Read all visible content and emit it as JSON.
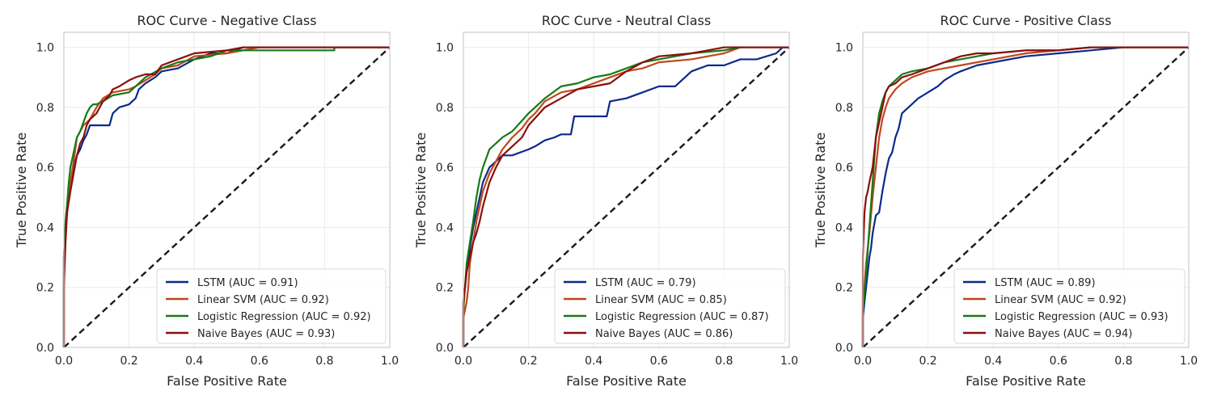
{
  "colors": {
    "LSTM": "#0a2a8a",
    "Linear SVM": "#c0481a",
    "Logistic Regression": "#167a16",
    "Naive Bayes": "#8b0e0e",
    "chance": "#1a1a1a",
    "grid": "#ebebeb",
    "frame": "#cccccc"
  },
  "chart_data": [
    {
      "type": "line",
      "title": "ROC Curve - Negative Class",
      "xlabel": "False Positive Rate",
      "ylabel": "True Positive Rate",
      "xlim": [
        0,
        1
      ],
      "ylim": [
        0,
        1.05
      ],
      "xticks": [
        "0.0",
        "0.2",
        "0.4",
        "0.6",
        "0.8",
        "1.0"
      ],
      "yticks": [
        "0.0",
        "0.2",
        "0.4",
        "0.6",
        "0.8",
        "1.0"
      ],
      "grid": true,
      "legend_position": "lower-right",
      "chance_line": true,
      "series": [
        {
          "name": "LSTM (AUC = 0.91)",
          "model": "LSTM",
          "x": [
            0,
            0,
            0.005,
            0.01,
            0.015,
            0.02,
            0.025,
            0.03,
            0.035,
            0.04,
            0.05,
            0.06,
            0.07,
            0.08,
            0.1,
            0.14,
            0.15,
            0.17,
            0.2,
            0.22,
            0.23,
            0.25,
            0.28,
            0.3,
            0.35,
            0.4,
            0.45,
            0.5,
            0.55,
            1.0
          ],
          "y": [
            0,
            0.3,
            0.4,
            0.45,
            0.5,
            0.53,
            0.56,
            0.6,
            0.62,
            0.64,
            0.66,
            0.69,
            0.71,
            0.74,
            0.74,
            0.74,
            0.78,
            0.8,
            0.81,
            0.83,
            0.86,
            0.88,
            0.9,
            0.92,
            0.93,
            0.96,
            0.98,
            0.98,
            1.0,
            1.0
          ]
        },
        {
          "name": "Linear SVM (AUC = 0.92)",
          "model": "Linear SVM",
          "x": [
            0,
            0,
            0.005,
            0.01,
            0.02,
            0.03,
            0.04,
            0.05,
            0.06,
            0.08,
            0.1,
            0.12,
            0.15,
            0.2,
            0.22,
            0.25,
            0.28,
            0.3,
            0.35,
            0.4,
            0.5,
            0.6,
            1.0
          ],
          "y": [
            0,
            0.25,
            0.4,
            0.47,
            0.55,
            0.62,
            0.7,
            0.72,
            0.74,
            0.76,
            0.8,
            0.83,
            0.85,
            0.86,
            0.87,
            0.89,
            0.91,
            0.93,
            0.94,
            0.97,
            0.98,
            1.0,
            1.0
          ]
        },
        {
          "name": "Logistic Regression (AUC = 0.92)",
          "model": "Logistic Regression",
          "x": [
            0,
            0,
            0.005,
            0.01,
            0.015,
            0.02,
            0.03,
            0.04,
            0.05,
            0.06,
            0.07,
            0.08,
            0.09,
            0.1,
            0.12,
            0.15,
            0.2,
            0.23,
            0.25,
            0.3,
            0.35,
            0.4,
            0.45,
            0.5,
            0.83,
            0.83,
            1.0
          ],
          "y": [
            0,
            0.3,
            0.42,
            0.48,
            0.55,
            0.6,
            0.65,
            0.7,
            0.72,
            0.75,
            0.78,
            0.8,
            0.81,
            0.81,
            0.82,
            0.84,
            0.85,
            0.88,
            0.9,
            0.93,
            0.95,
            0.96,
            0.97,
            0.99,
            0.99,
            1.0,
            1.0
          ]
        },
        {
          "name": "Naive Bayes (AUC = 0.93)",
          "model": "Naive Bayes",
          "x": [
            0,
            0,
            0.005,
            0.01,
            0.02,
            0.03,
            0.04,
            0.05,
            0.06,
            0.07,
            0.08,
            0.1,
            0.12,
            0.14,
            0.15,
            0.17,
            0.2,
            0.22,
            0.25,
            0.28,
            0.3,
            0.35,
            0.4,
            0.5,
            0.55,
            1.0
          ],
          "y": [
            0,
            0.2,
            0.35,
            0.45,
            0.52,
            0.58,
            0.64,
            0.68,
            0.7,
            0.74,
            0.76,
            0.78,
            0.82,
            0.84,
            0.86,
            0.87,
            0.89,
            0.9,
            0.91,
            0.91,
            0.94,
            0.96,
            0.98,
            0.99,
            1.0,
            1.0
          ]
        }
      ]
    },
    {
      "type": "line",
      "title": "ROC Curve - Neutral Class",
      "xlabel": "False Positive Rate",
      "ylabel": "True Positive Rate",
      "xlim": [
        0,
        1
      ],
      "ylim": [
        0,
        1.05
      ],
      "xticks": [
        "0.0",
        "0.2",
        "0.4",
        "0.6",
        "0.8",
        "1.0"
      ],
      "yticks": [
        "0.0",
        "0.2",
        "0.4",
        "0.6",
        "0.8",
        "1.0"
      ],
      "grid": true,
      "legend_position": "lower-right",
      "chance_line": true,
      "series": [
        {
          "name": "LSTM (AUC = 0.79)",
          "model": "LSTM",
          "x": [
            0,
            0,
            0.01,
            0.02,
            0.03,
            0.04,
            0.05,
            0.06,
            0.08,
            0.1,
            0.12,
            0.15,
            0.2,
            0.22,
            0.25,
            0.28,
            0.3,
            0.33,
            0.34,
            0.4,
            0.44,
            0.45,
            0.5,
            0.55,
            0.6,
            0.65,
            0.7,
            0.75,
            0.8,
            0.85,
            0.9,
            0.96,
            0.98,
            1.0
          ],
          "y": [
            0,
            0.15,
            0.25,
            0.33,
            0.4,
            0.45,
            0.5,
            0.55,
            0.6,
            0.62,
            0.64,
            0.64,
            0.66,
            0.67,
            0.69,
            0.7,
            0.71,
            0.71,
            0.77,
            0.77,
            0.77,
            0.82,
            0.83,
            0.85,
            0.87,
            0.87,
            0.92,
            0.94,
            0.94,
            0.96,
            0.96,
            0.98,
            1.0,
            1.0
          ]
        },
        {
          "name": "Linear SVM (AUC = 0.85)",
          "model": "Linear SVM",
          "x": [
            0,
            0,
            0.01,
            0.015,
            0.02,
            0.03,
            0.04,
            0.05,
            0.06,
            0.08,
            0.1,
            0.12,
            0.15,
            0.18,
            0.2,
            0.22,
            0.25,
            0.3,
            0.35,
            0.4,
            0.45,
            0.5,
            0.55,
            0.6,
            0.7,
            0.75,
            0.8,
            0.85,
            1.0
          ],
          "y": [
            0,
            0.1,
            0.15,
            0.2,
            0.28,
            0.35,
            0.42,
            0.47,
            0.52,
            0.58,
            0.62,
            0.66,
            0.7,
            0.73,
            0.76,
            0.78,
            0.82,
            0.85,
            0.86,
            0.88,
            0.9,
            0.92,
            0.93,
            0.95,
            0.96,
            0.97,
            0.98,
            1.0,
            1.0
          ]
        },
        {
          "name": "Logistic Regression (AUC = 0.87)",
          "model": "Logistic Regression",
          "x": [
            0,
            0,
            0.005,
            0.01,
            0.02,
            0.03,
            0.04,
            0.05,
            0.06,
            0.07,
            0.08,
            0.1,
            0.12,
            0.15,
            0.2,
            0.25,
            0.3,
            0.35,
            0.4,
            0.45,
            0.5,
            0.55,
            0.6,
            0.65,
            0.7,
            0.8,
            0.85,
            1.0
          ],
          "y": [
            0,
            0.12,
            0.2,
            0.28,
            0.35,
            0.42,
            0.5,
            0.56,
            0.6,
            0.63,
            0.66,
            0.68,
            0.7,
            0.72,
            0.78,
            0.83,
            0.87,
            0.88,
            0.9,
            0.91,
            0.93,
            0.95,
            0.96,
            0.97,
            0.98,
            0.99,
            1.0,
            1.0
          ]
        },
        {
          "name": "Naive Bayes (AUC = 0.86)",
          "model": "Naive Bayes",
          "x": [
            0,
            0,
            0.01,
            0.02,
            0.03,
            0.04,
            0.05,
            0.06,
            0.08,
            0.1,
            0.12,
            0.15,
            0.18,
            0.2,
            0.25,
            0.3,
            0.35,
            0.4,
            0.45,
            0.5,
            0.55,
            0.6,
            0.7,
            0.75,
            0.8,
            1.0
          ],
          "y": [
            0,
            0.15,
            0.25,
            0.3,
            0.35,
            0.38,
            0.42,
            0.47,
            0.55,
            0.6,
            0.64,
            0.67,
            0.7,
            0.74,
            0.8,
            0.83,
            0.86,
            0.87,
            0.88,
            0.92,
            0.95,
            0.97,
            0.98,
            0.99,
            1.0,
            1.0
          ]
        }
      ]
    },
    {
      "type": "line",
      "title": "ROC Curve - Positive Class",
      "xlabel": "False Positive Rate",
      "ylabel": "True Positive Rate",
      "xlim": [
        0,
        1
      ],
      "ylim": [
        0,
        1.05
      ],
      "xticks": [
        "0.0",
        "0.2",
        "0.4",
        "0.6",
        "0.8",
        "1.0"
      ],
      "yticks": [
        "0.0",
        "0.2",
        "0.4",
        "0.6",
        "0.8",
        "1.0"
      ],
      "grid": true,
      "legend_position": "lower-right",
      "chance_line": true,
      "series": [
        {
          "name": "LSTM (AUC = 0.89)",
          "model": "LSTM",
          "x": [
            0,
            0,
            0.01,
            0.02,
            0.025,
            0.03,
            0.04,
            0.05,
            0.06,
            0.07,
            0.08,
            0.09,
            0.1,
            0.11,
            0.12,
            0.13,
            0.15,
            0.17,
            0.2,
            0.23,
            0.25,
            0.28,
            0.3,
            0.35,
            0.4,
            0.5,
            0.6,
            0.7,
            0.8,
            0.9,
            1.0
          ],
          "y": [
            0,
            0.1,
            0.2,
            0.3,
            0.33,
            0.38,
            0.44,
            0.45,
            0.52,
            0.58,
            0.63,
            0.65,
            0.7,
            0.73,
            0.78,
            0.79,
            0.81,
            0.83,
            0.85,
            0.87,
            0.89,
            0.91,
            0.92,
            0.94,
            0.95,
            0.97,
            0.98,
            0.99,
            1.0,
            1.0,
            1.0
          ]
        },
        {
          "name": "Linear SVM (AUC = 0.92)",
          "model": "Linear SVM",
          "x": [
            0,
            0,
            0.005,
            0.01,
            0.015,
            0.02,
            0.03,
            0.04,
            0.05,
            0.06,
            0.07,
            0.08,
            0.1,
            0.12,
            0.15,
            0.2,
            0.25,
            0.3,
            0.35,
            0.4,
            0.5,
            0.6,
            0.7,
            0.8,
            1.0
          ],
          "y": [
            0,
            0.15,
            0.2,
            0.28,
            0.33,
            0.38,
            0.5,
            0.6,
            0.7,
            0.76,
            0.8,
            0.83,
            0.86,
            0.88,
            0.9,
            0.92,
            0.93,
            0.94,
            0.95,
            0.96,
            0.98,
            0.99,
            1.0,
            1.0,
            1.0
          ]
        },
        {
          "name": "Logistic Regression (AUC = 0.93)",
          "model": "Logistic Regression",
          "x": [
            0,
            0,
            0.005,
            0.01,
            0.015,
            0.02,
            0.03,
            0.04,
            0.05,
            0.06,
            0.07,
            0.08,
            0.1,
            0.12,
            0.15,
            0.2,
            0.25,
            0.3,
            0.35,
            0.4,
            0.5,
            0.6,
            0.7,
            1.0
          ],
          "y": [
            0,
            0.12,
            0.18,
            0.25,
            0.32,
            0.4,
            0.55,
            0.7,
            0.78,
            0.82,
            0.85,
            0.87,
            0.89,
            0.91,
            0.92,
            0.93,
            0.95,
            0.96,
            0.97,
            0.98,
            0.99,
            0.99,
            1.0,
            1.0
          ]
        },
        {
          "name": "Naive Bayes (AUC = 0.94)",
          "model": "Naive Bayes",
          "x": [
            0,
            0,
            0.005,
            0.01,
            0.015,
            0.02,
            0.03,
            0.04,
            0.05,
            0.06,
            0.07,
            0.08,
            0.1,
            0.12,
            0.15,
            0.2,
            0.25,
            0.3,
            0.35,
            0.4,
            0.5,
            0.6,
            0.7,
            1.0
          ],
          "y": [
            0,
            0.3,
            0.45,
            0.5,
            0.52,
            0.55,
            0.6,
            0.7,
            0.75,
            0.8,
            0.85,
            0.87,
            0.88,
            0.9,
            0.91,
            0.93,
            0.95,
            0.97,
            0.98,
            0.98,
            0.99,
            0.99,
            1.0,
            1.0
          ]
        }
      ]
    }
  ]
}
